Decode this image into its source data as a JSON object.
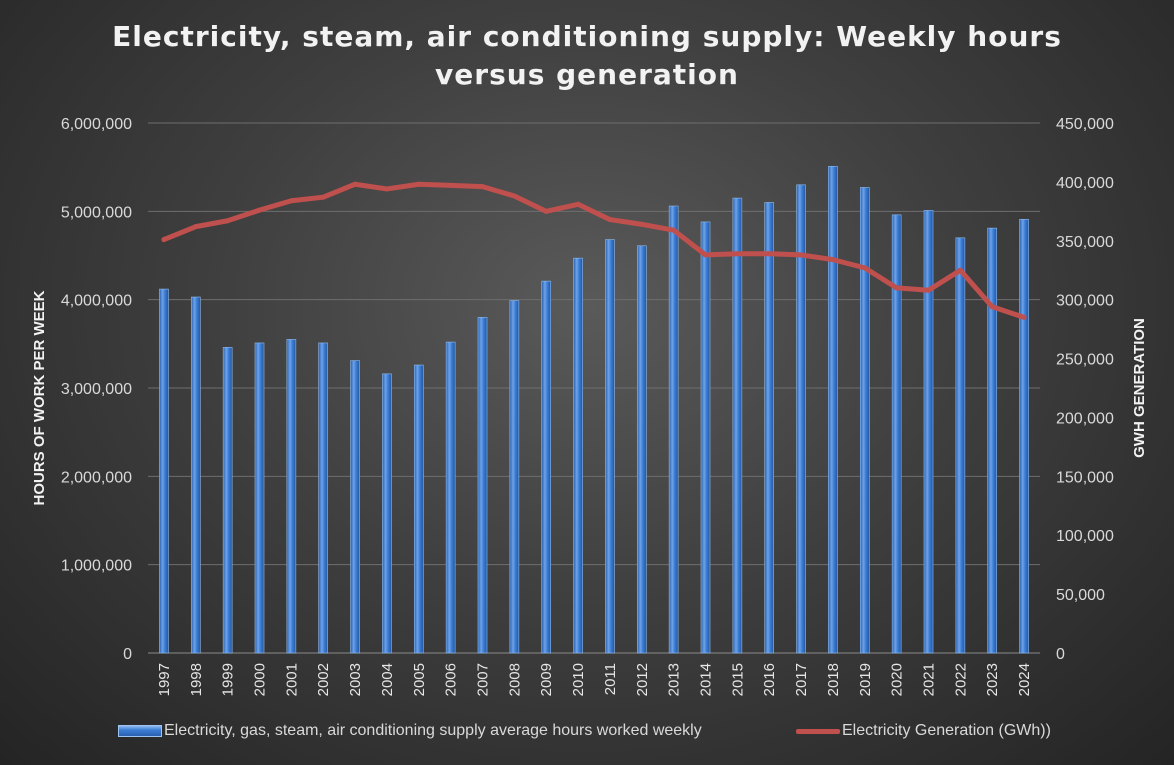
{
  "chart_data": {
    "type": "bar+line",
    "title": "Electricity, steam, air conditioning supply: Weekly hours versus generation",
    "categories": [
      "1997",
      "1998",
      "1999",
      "2000",
      "2001",
      "2002",
      "2003",
      "2004",
      "2005",
      "2006",
      "2007",
      "2008",
      "2009",
      "2010",
      "2011",
      "2012",
      "2013",
      "2014",
      "2015",
      "2016",
      "2017",
      "2018",
      "2019",
      "2020",
      "2021",
      "2022",
      "2023",
      "2024"
    ],
    "series": [
      {
        "name": "Electricity, gas, steam, air conditioning supply average hours worked weekly",
        "type": "bar",
        "axis": "left",
        "color": "#3c7fd6",
        "values": [
          4120000,
          4030000,
          3460000,
          3510000,
          3550000,
          3510000,
          3310000,
          3160000,
          3260000,
          3520000,
          3800000,
          3990000,
          4210000,
          4470000,
          4680000,
          4610000,
          5060000,
          4880000,
          5150000,
          5100000,
          5300000,
          5510000,
          5270000,
          4960000,
          5010000,
          4700000,
          4810000,
          4910000
        ]
      },
      {
        "name": "Electricity Generation (GWh))",
        "type": "line",
        "axis": "right",
        "color": "#c0504d",
        "values": [
          351000,
          362000,
          367000,
          376000,
          384000,
          387000,
          398000,
          394000,
          398000,
          397000,
          396000,
          388000,
          375000,
          381000,
          368000,
          364000,
          359000,
          338000,
          339000,
          339000,
          338000,
          334000,
          327000,
          310000,
          308000,
          325000,
          294000,
          285000
        ]
      }
    ],
    "ylabel": "HOURS  OF WORK PER WEEK",
    "y2label": "GWH GENERATION",
    "ylim": [
      0,
      6000000
    ],
    "y2lim": [
      0,
      450000
    ],
    "yticks": [
      "0",
      "1,000,000",
      "2,000,000",
      "3,000,000",
      "4,000,000",
      "5,000,000",
      "6,000,000"
    ],
    "y2ticks": [
      "0",
      "50,000",
      "100,000",
      "150,000",
      "200,000",
      "250,000",
      "300,000",
      "350,000",
      "400,000",
      "450,000"
    ],
    "grid": true,
    "legend_position": "bottom"
  }
}
